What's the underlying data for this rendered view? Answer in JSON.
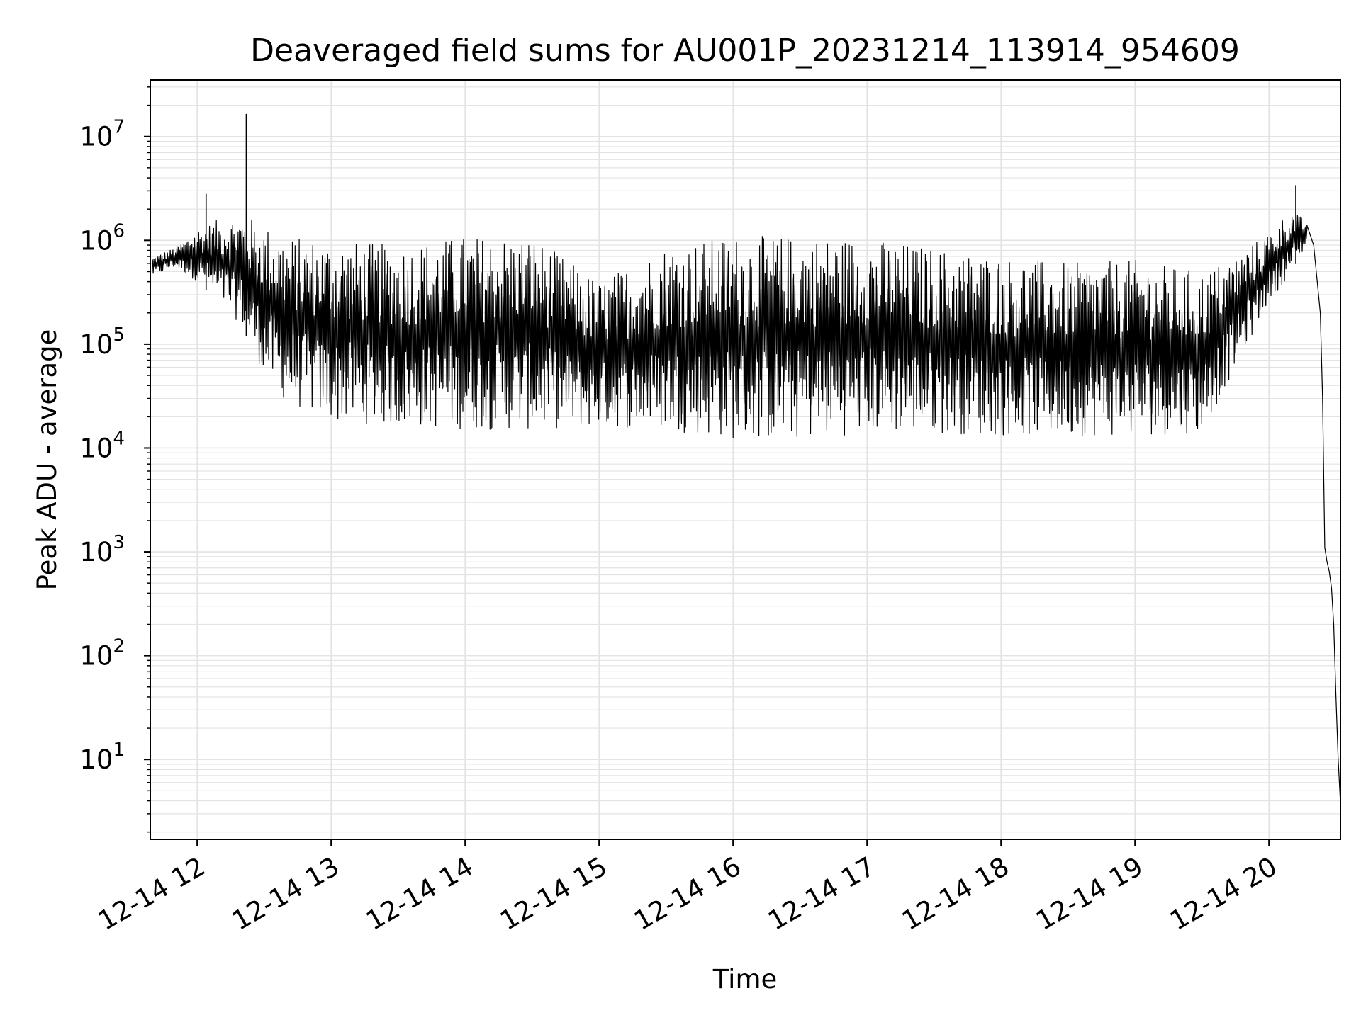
{
  "chart_data": {
    "type": "line",
    "title": "Deaveraged field sums for AU001P_20231214_113914_954609",
    "xlabel": "Time",
    "ylabel": "Peak ADU - average",
    "yscale": "log",
    "ylim": [
      1.7,
      35000000
    ],
    "xlim": [
      "12-14 11:39",
      "12-14 20:32"
    ],
    "grid": true,
    "line_color": "#000000",
    "x_ticks": [
      {
        "t": "12-14 12:00",
        "label": "12-14 12"
      },
      {
        "t": "12-14 13:00",
        "label": "12-14 13"
      },
      {
        "t": "12-14 14:00",
        "label": "12-14 14"
      },
      {
        "t": "12-14 15:00",
        "label": "12-14 15"
      },
      {
        "t": "12-14 16:00",
        "label": "12-14 16"
      },
      {
        "t": "12-14 17:00",
        "label": "12-14 17"
      },
      {
        "t": "12-14 18:00",
        "label": "12-14 18"
      },
      {
        "t": "12-14 19:00",
        "label": "12-14 19"
      },
      {
        "t": "12-14 20:00",
        "label": "12-14 20"
      }
    ],
    "y_ticks": [
      {
        "value": 10,
        "base": "10",
        "exp": "1"
      },
      {
        "value": 100,
        "base": "10",
        "exp": "2"
      },
      {
        "value": 1000,
        "base": "10",
        "exp": "3"
      },
      {
        "value": 10000,
        "base": "10",
        "exp": "4"
      },
      {
        "value": 100000,
        "base": "10",
        "exp": "5"
      },
      {
        "value": 1000000,
        "base": "10",
        "exp": "6"
      },
      {
        "value": 10000000,
        "base": "10",
        "exp": "7"
      }
    ],
    "series": [
      {
        "envelope": [
          {
            "t": "12-14 11:40",
            "low": 450000,
            "high": 700000
          },
          {
            "t": "12-14 11:50",
            "low": 550000,
            "high": 850000
          },
          {
            "t": "12-14 12:00",
            "low": 400000,
            "high": 1300000
          },
          {
            "t": "12-14 12:10",
            "low": 250000,
            "high": 1600000
          },
          {
            "t": "12-14 12:20",
            "low": 150000,
            "high": 1800000
          },
          {
            "t": "12-14 12:30",
            "low": 50000,
            "high": 1400000
          },
          {
            "t": "12-14 12:40",
            "low": 27000,
            "high": 1100000
          },
          {
            "t": "12-14 13:00",
            "low": 18000,
            "high": 1000000
          },
          {
            "t": "12-14 13:30",
            "low": 16000,
            "high": 900000
          },
          {
            "t": "12-14 14:00",
            "low": 15000,
            "high": 1100000
          },
          {
            "t": "12-14 14:30",
            "low": 15000,
            "high": 1100000
          },
          {
            "t": "12-14 15:00",
            "low": 16000,
            "high": 400000
          },
          {
            "t": "12-14 15:30",
            "low": 15000,
            "high": 900000
          },
          {
            "t": "12-14 16:00",
            "low": 12000,
            "high": 1100000
          },
          {
            "t": "12-14 16:30",
            "low": 12000,
            "high": 1100000
          },
          {
            "t": "12-14 17:00",
            "low": 14000,
            "high": 1050000
          },
          {
            "t": "12-14 17:30",
            "low": 14000,
            "high": 850000
          },
          {
            "t": "12-14 18:00",
            "low": 13000,
            "high": 700000
          },
          {
            "t": "12-14 18:30",
            "low": 13000,
            "high": 600000
          },
          {
            "t": "12-14 19:00",
            "low": 13000,
            "high": 650000
          },
          {
            "t": "12-14 19:30",
            "low": 14000,
            "high": 500000
          },
          {
            "t": "12-14 19:45",
            "low": 60000,
            "high": 700000
          },
          {
            "t": "12-14 20:00",
            "low": 250000,
            "high": 1200000
          },
          {
            "t": "12-14 20:10",
            "low": 500000,
            "high": 2000000
          },
          {
            "t": "12-14 20:17",
            "low": 900000,
            "high": 1500000
          }
        ],
        "spikes": [
          {
            "t": "12-14 12:04",
            "value": 2800000
          },
          {
            "t": "12-14 12:22",
            "value": 16500000
          },
          {
            "t": "12-14 20:12",
            "value": 3400000
          }
        ],
        "tail": [
          {
            "t": "12-14 20:17",
            "value": 1400000
          },
          {
            "t": "12-14 20:20",
            "value": 900000
          },
          {
            "t": "12-14 20:23",
            "value": 200000
          },
          {
            "t": "12-14 20:24",
            "value": 30000
          },
          {
            "t": "12-14 20:25",
            "value": 1100
          },
          {
            "t": "12-14 20:26",
            "value": 800
          },
          {
            "t": "12-14 20:27",
            "value": 650
          },
          {
            "t": "12-14 20:28",
            "value": 450
          },
          {
            "t": "12-14 20:29",
            "value": 200
          },
          {
            "t": "12-14 20:30",
            "value": 40
          },
          {
            "t": "12-14 20:31",
            "value": 10
          },
          {
            "t": "12-14 20:32",
            "value": 3.8
          }
        ]
      }
    ]
  }
}
